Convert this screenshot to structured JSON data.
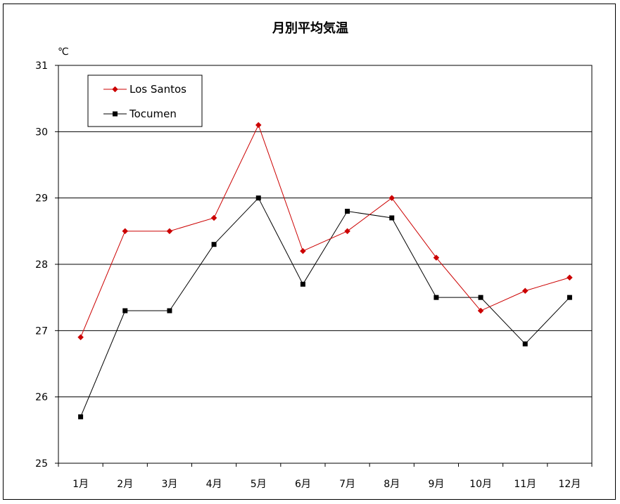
{
  "chart_data": {
    "type": "line",
    "title": "月別平均気温",
    "ylabel": "",
    "unit_label": "℃",
    "xlabel": "",
    "categories": [
      "1月",
      "2月",
      "3月",
      "4月",
      "5月",
      "6月",
      "7月",
      "8月",
      "9月",
      "10月",
      "11月",
      "12月"
    ],
    "ylim": [
      25,
      31
    ],
    "yticks": [
      25,
      26,
      27,
      28,
      29,
      30,
      31
    ],
    "grid": true,
    "legend_position": "top-left",
    "series": [
      {
        "name": "Los Santos",
        "color": "#cc0000",
        "marker": "diamond",
        "values": [
          26.9,
          28.5,
          28.5,
          28.7,
          30.1,
          28.2,
          28.5,
          29.0,
          28.1,
          27.3,
          27.6,
          27.8
        ]
      },
      {
        "name": "Tocumen",
        "color": "#000000",
        "marker": "square",
        "values": [
          25.7,
          27.3,
          27.3,
          28.3,
          29.0,
          27.7,
          28.8,
          28.7,
          27.5,
          27.5,
          26.8,
          27.5
        ]
      }
    ]
  }
}
